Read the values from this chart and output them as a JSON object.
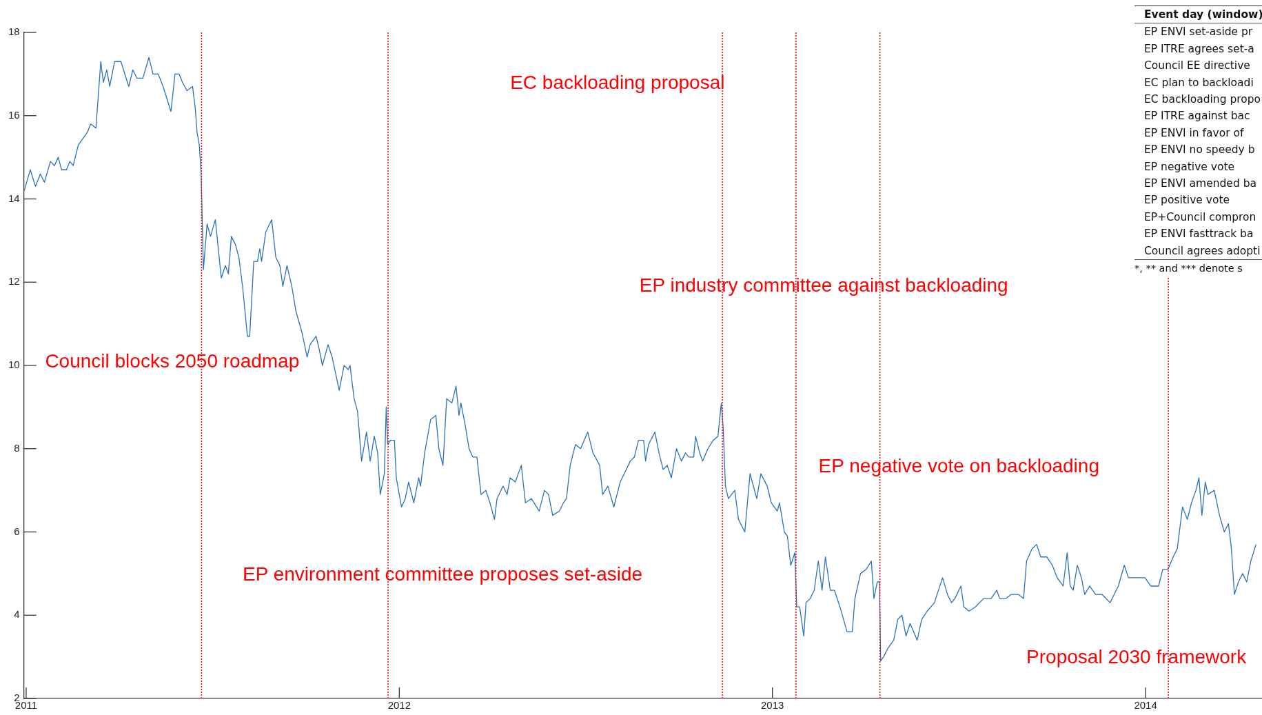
{
  "chart_data": {
    "type": "line",
    "x": [
      2010.995,
      2011.011,
      2011.025,
      2011.038,
      2011.049,
      2011.065,
      2011.076,
      2011.086,
      2011.095,
      2011.108,
      2011.117,
      2011.126,
      2011.14,
      2011.164,
      2011.173,
      2011.187,
      2011.2,
      2011.207,
      2011.216,
      2011.224,
      2011.237,
      2011.254,
      2011.275,
      2011.286,
      2011.297,
      2011.313,
      2011.329,
      2011.34,
      2011.354,
      2011.367,
      2011.388,
      2011.399,
      2011.41,
      2011.419,
      2011.431,
      2011.446,
      2011.453,
      2011.458,
      2011.464,
      2011.469,
      2011.475,
      2011.485,
      2011.494,
      2011.507,
      2011.523,
      2011.534,
      2011.542,
      2011.55,
      2011.561,
      2011.57,
      2011.58,
      2011.593,
      2011.599,
      2011.61,
      2011.62,
      2011.626,
      2011.631,
      2011.642,
      2011.658,
      2011.669,
      2011.68,
      2011.688,
      2011.699,
      2011.712,
      2011.723,
      2011.739,
      2011.753,
      2011.761,
      2011.777,
      2011.785,
      2011.794,
      2011.809,
      2011.82,
      2011.839,
      2011.852,
      2011.863,
      2011.868,
      2011.879,
      2011.888,
      2011.899,
      2011.912,
      2011.922,
      2011.933,
      2011.942,
      2011.949,
      2011.96,
      2011.965,
      2011.969,
      2011.976,
      2011.987,
      2011.992,
      2012.006,
      2012.016,
      2012.025,
      2012.039,
      2012.052,
      2012.057,
      2012.068,
      2012.084,
      2012.098,
      2012.106,
      2012.117,
      2012.127,
      2012.141,
      2012.152,
      2012.16,
      2012.165,
      2012.176,
      2012.187,
      2012.197,
      2012.208,
      2012.219,
      2012.232,
      2012.243,
      2012.255,
      2012.262,
      2012.278,
      2012.289,
      2012.297,
      2012.311,
      2012.327,
      2012.338,
      2012.354,
      2012.375,
      2012.389,
      2012.4,
      2012.411,
      2012.429,
      2012.44,
      2012.448,
      2012.458,
      2012.472,
      2012.486,
      2012.505,
      2012.519,
      2012.537,
      2012.545,
      2012.559,
      2012.575,
      2012.592,
      2012.603,
      2012.619,
      2012.63,
      2012.641,
      2012.655,
      2012.66,
      2012.668,
      2012.685,
      2012.696,
      2012.707,
      2012.718,
      2012.729,
      2012.743,
      2012.756,
      2012.767,
      2012.776,
      2012.789,
      2012.794,
      2012.805,
      2012.813,
      2012.827,
      2012.841,
      2012.854,
      2012.863,
      2012.868,
      2012.874,
      2012.882,
      2012.899,
      2012.909,
      2012.926,
      2012.94,
      2012.958,
      2012.969,
      2012.986,
      2012.997,
      2013.013,
      2013.019,
      2013.032,
      2013.04,
      2013.049,
      2013.06,
      2013.065,
      2013.073,
      2013.084,
      2013.09,
      2013.101,
      2013.112,
      2013.123,
      2013.133,
      2013.142,
      2013.155,
      2013.166,
      2013.181,
      2013.2,
      2013.214,
      2013.221,
      2013.236,
      2013.251,
      2013.265,
      2013.272,
      2013.281,
      2013.287,
      2013.29,
      2013.298,
      2013.309,
      2013.325,
      2013.336,
      2013.347,
      2013.358,
      2013.369,
      2013.388,
      2013.4,
      2013.415,
      2013.434,
      2013.456,
      2013.469,
      2013.48,
      2013.489,
      2013.505,
      2013.513,
      2013.527,
      2013.544,
      2013.566,
      2013.586,
      2013.601,
      2013.609,
      2013.626,
      2013.64,
      2013.659,
      2013.673,
      2013.681,
      2013.696,
      2013.708,
      2013.719,
      2013.735,
      2013.75,
      2013.763,
      2013.779,
      2013.79,
      2013.798,
      2013.806,
      2013.817,
      2013.828,
      2013.837,
      2013.85,
      2013.866,
      2013.883,
      2013.905,
      2013.916,
      2013.927,
      2013.943,
      2013.954,
      2013.976,
      2013.998,
      2014.014,
      2014.026,
      2014.035,
      2014.046,
      2014.06,
      2014.074,
      2014.085,
      2014.099,
      2014.112,
      2014.123,
      2014.135,
      2014.143,
      2014.151,
      2014.16,
      2014.167,
      2014.184,
      2014.198,
      2014.211,
      2014.222,
      2014.23,
      2014.238,
      2014.249,
      2014.26,
      2014.271,
      2014.282,
      2014.296
    ],
    "series": [
      {
        "color": "#2a72bb",
        "values": [
          14.2,
          14.7,
          14.3,
          14.6,
          14.4,
          14.9,
          14.8,
          15.0,
          14.7,
          14.7,
          14.9,
          14.8,
          15.3,
          15.6,
          15.8,
          15.7,
          17.3,
          16.8,
          17.1,
          16.7,
          17.3,
          17.3,
          16.7,
          17.1,
          16.9,
          16.9,
          17.4,
          17.0,
          17.0,
          16.7,
          16.1,
          17.0,
          17.0,
          16.8,
          16.6,
          16.7,
          16.2,
          15.6,
          15.3,
          14.6,
          12.3,
          13.4,
          13.1,
          13.5,
          12.1,
          12.4,
          12.2,
          13.1,
          12.9,
          12.6,
          11.9,
          10.7,
          10.7,
          12.5,
          12.5,
          12.8,
          12.5,
          13.2,
          13.5,
          12.6,
          12.4,
          11.9,
          12.4,
          11.9,
          11.3,
          10.8,
          10.2,
          10.5,
          10.7,
          10.4,
          10.0,
          10.5,
          10.2,
          9.4,
          10.0,
          9.9,
          10.0,
          9.2,
          8.9,
          7.7,
          8.4,
          7.7,
          8.3,
          7.9,
          6.9,
          7.4,
          9.0,
          8.1,
          8.2,
          8.2,
          7.3,
          6.6,
          6.8,
          7.2,
          6.7,
          7.3,
          7.1,
          7.9,
          8.7,
          8.8,
          8.0,
          7.6,
          9.2,
          9.1,
          9.5,
          8.8,
          9.1,
          8.6,
          8.0,
          7.8,
          7.8,
          6.9,
          7.0,
          6.7,
          6.3,
          6.8,
          7.1,
          6.9,
          7.3,
          7.2,
          7.6,
          6.7,
          6.8,
          6.5,
          7.0,
          6.9,
          6.4,
          6.5,
          6.7,
          6.8,
          7.6,
          8.1,
          8.0,
          8.4,
          7.9,
          7.6,
          6.9,
          7.1,
          6.6,
          7.2,
          7.4,
          7.7,
          7.8,
          8.2,
          8.2,
          7.7,
          8.1,
          8.4,
          7.9,
          7.5,
          7.6,
          7.3,
          8.0,
          7.7,
          7.9,
          7.8,
          7.8,
          8.3,
          7.9,
          7.7,
          8.0,
          8.2,
          8.3,
          9.1,
          8.5,
          7.1,
          6.8,
          7.0,
          6.3,
          6.0,
          7.4,
          6.8,
          7.4,
          7.1,
          6.7,
          6.5,
          6.7,
          6.0,
          5.9,
          5.2,
          5.5,
          4.2,
          4.2,
          3.5,
          4.3,
          4.4,
          4.6,
          5.3,
          4.6,
          5.4,
          4.6,
          4.6,
          4.2,
          3.6,
          3.6,
          4.4,
          5.0,
          5.1,
          5.3,
          4.4,
          4.8,
          4.8,
          2.9,
          3.0,
          3.2,
          3.4,
          3.9,
          4.0,
          3.5,
          3.8,
          3.4,
          3.9,
          4.1,
          4.3,
          4.9,
          4.5,
          4.3,
          4.4,
          4.7,
          4.2,
          4.1,
          4.2,
          4.4,
          4.4,
          4.6,
          4.4,
          4.4,
          4.5,
          4.5,
          4.4,
          5.3,
          5.6,
          5.7,
          5.4,
          5.4,
          5.2,
          4.9,
          4.7,
          5.5,
          4.7,
          4.6,
          5.2,
          4.9,
          4.5,
          4.7,
          4.5,
          4.5,
          4.3,
          4.5,
          4.7,
          5.2,
          4.9,
          4.9,
          4.9,
          4.7,
          4.7,
          4.7,
          5.1,
          5.1,
          5.4,
          5.6,
          6.6,
          6.3,
          6.7,
          7.0,
          7.3,
          6.4,
          7.2,
          6.9,
          7.0,
          6.4,
          6.0,
          6.2,
          5.6,
          4.5,
          4.8,
          5.0,
          4.8,
          5.3,
          5.7
        ]
      }
    ],
    "xlim": [
      2010.994,
      2014.312
    ],
    "xticks": [
      2011,
      2012,
      2013,
      2014
    ],
    "ylim": [
      2,
      18
    ],
    "yticks": [
      2,
      4,
      6,
      8,
      10,
      12,
      14,
      16,
      18
    ],
    "grid": false,
    "legend": false,
    "marker": "none",
    "line_style": "solid",
    "ref_lines": [
      {
        "axis": "x",
        "value": 2011.47,
        "label": "Council blocks 2050 roadmap",
        "color": "#ff0000",
        "line_style": "dotted"
      },
      {
        "axis": "x",
        "value": 2011.97,
        "label": "EP environment committee proposes set-aside",
        "color": "#ff0000",
        "line_style": "dotted"
      },
      {
        "axis": "x",
        "value": 2012.866,
        "label": "EC backloading proposal",
        "color": "#ff0000",
        "line_style": "dotted"
      },
      {
        "axis": "x",
        "value": 2013.063,
        "label": "EP industry committee against backloading",
        "color": "#ff0000",
        "line_style": "dotted"
      },
      {
        "axis": "x",
        "value": 2013.288,
        "label": "EP negative vote on backloading",
        "color": "#ff0000",
        "line_style": "dotted"
      },
      {
        "axis": "x",
        "value": 2014.061,
        "label": "Proposal 2030 framework",
        "color": "#ff0000",
        "line_style": "dotted"
      }
    ],
    "annotations": [
      "Event day (window)",
      "EP ENVI set-aside pr",
      "EP ITRE agrees set-a",
      "Council EE directive",
      "EC plan to backloadi",
      "EC backloading propo",
      "EP ITRE against bac",
      "EP ENVI in favor of",
      "EP ENVI no speedy b",
      "EP negative vote",
      "EP ENVI amended ba",
      "EP positive vote",
      "EP+Council compron",
      "EP ENVI fasttrack ba",
      "Council agrees adopti",
      "*, ** and *** denote s"
    ]
  }
}
